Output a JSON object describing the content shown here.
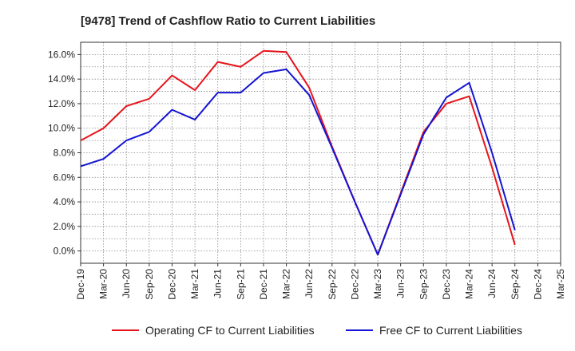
{
  "chart_data": {
    "type": "line",
    "title": "[9478]  Trend of Cashflow Ratio to Current Liabilities",
    "xlabel": "",
    "ylabel": "",
    "categories": [
      "Dec-19",
      "Mar-20",
      "Jun-20",
      "Sep-20",
      "Dec-20",
      "Mar-21",
      "Jun-21",
      "Sep-21",
      "Dec-21",
      "Mar-22",
      "Jun-22",
      "Sep-22",
      "Dec-22",
      "Mar-23",
      "Jun-23",
      "Sep-23",
      "Dec-23",
      "Mar-24",
      "Jun-24",
      "Sep-24",
      "Dec-24",
      "Mar-25"
    ],
    "yticks": [
      "0.0%",
      "2.0%",
      "4.0%",
      "6.0%",
      "8.0%",
      "10.0%",
      "12.0%",
      "14.0%",
      "16.0%"
    ],
    "ylim": [
      -1.0,
      17.0
    ],
    "grid": true,
    "legend_position": "bottom",
    "series": [
      {
        "name": "Operating CF to Current Liabilities",
        "color": "#e8141b",
        "values": [
          9.0,
          10.0,
          11.8,
          12.4,
          14.3,
          13.1,
          15.4,
          15.0,
          16.3,
          16.2,
          13.3,
          8.5,
          4.0,
          -0.3,
          4.7,
          9.7,
          12.0,
          12.6,
          6.8,
          0.5,
          null,
          null
        ]
      },
      {
        "name": "Free CF to Current Liabilities",
        "color": "#1414d2",
        "values": [
          6.9,
          7.5,
          9.0,
          9.7,
          11.5,
          10.7,
          12.9,
          12.9,
          14.5,
          14.8,
          12.7,
          8.4,
          4.0,
          -0.3,
          4.6,
          9.5,
          12.5,
          13.7,
          8.0,
          1.7,
          null,
          null
        ]
      }
    ]
  }
}
